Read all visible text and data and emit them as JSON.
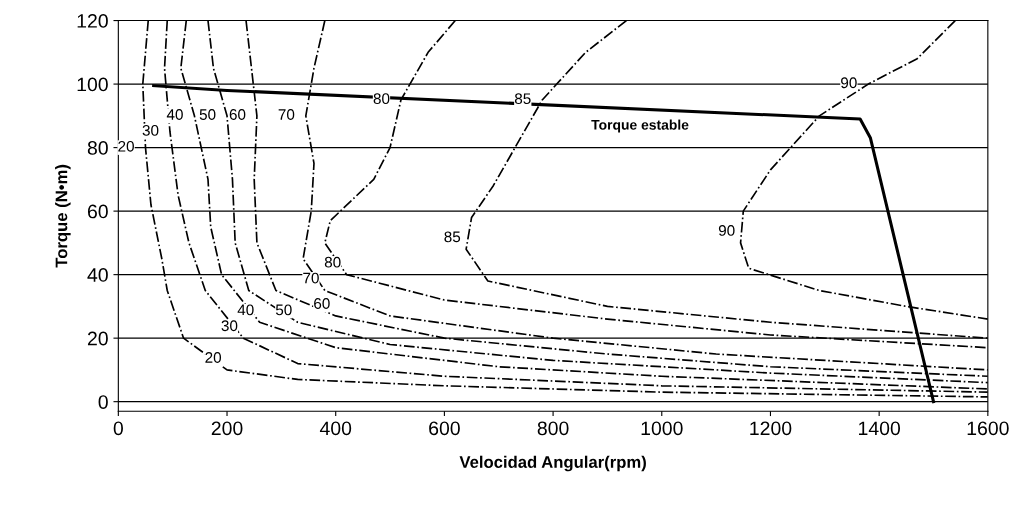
{
  "chart_data": {
    "type": "line",
    "xlabel": "Velocidad Angular(rpm)",
    "ylabel": "Torque (N•m)",
    "xlim": [
      0,
      1600
    ],
    "ylim": [
      -3,
      120
    ],
    "xticks": [
      0,
      200,
      400,
      600,
      800,
      1000,
      1200,
      1400,
      1600
    ],
    "yticks": [
      0,
      20,
      40,
      60,
      80,
      100,
      120
    ],
    "grid": "y",
    "marker": "none",
    "series": [
      {
        "name": "20",
        "color": "#000000",
        "line_style": "dashdot",
        "x": [
          55,
          45,
          50,
          60,
          80,
          90,
          120,
          200,
          330,
          600,
          1000,
          1600
        ],
        "values": [
          120,
          100,
          80,
          62,
          45,
          35,
          20,
          10,
          7,
          5,
          3,
          1.5
        ]
      },
      {
        "name": "30",
        "color": "#000000",
        "line_style": "dashdot",
        "x": [
          90,
          85,
          95,
          110,
          130,
          160,
          230,
          330,
          600,
          1000,
          1600
        ],
        "values": [
          120,
          105,
          85,
          65,
          50,
          35,
          20,
          12,
          8,
          5,
          3
        ]
      },
      {
        "name": "40",
        "color": "#000000",
        "line_style": "dashdot",
        "x": [
          125,
          115,
          140,
          165,
          170,
          190,
          260,
          400,
          700,
          1000,
          1600
        ],
        "values": [
          120,
          105,
          90,
          70,
          55,
          40,
          25,
          17,
          11,
          8,
          4
        ]
      },
      {
        "name": "50",
        "color": "#000000",
        "line_style": "dashdot",
        "x": [
          165,
          175,
          200,
          210,
          215,
          240,
          330,
          500,
          800,
          1200,
          1600
        ],
        "values": [
          120,
          105,
          90,
          70,
          50,
          35,
          25,
          18,
          13,
          9,
          6
        ]
      },
      {
        "name": "60",
        "color": "#000000",
        "line_style": "dashdot",
        "x": [
          235,
          245,
          255,
          250,
          255,
          290,
          400,
          600,
          900,
          1200,
          1600
        ],
        "values": [
          120,
          105,
          90,
          70,
          50,
          35,
          27,
          20,
          15,
          11,
          8
        ]
      },
      {
        "name": "70",
        "color": "#000000",
        "line_style": "dashdot",
        "x": [
          380,
          360,
          345,
          360,
          355,
          340,
          380,
          500,
          800,
          1100,
          1600
        ],
        "values": [
          120,
          105,
          90,
          75,
          60,
          45,
          35,
          27,
          20,
          15,
          10
        ]
      },
      {
        "name": "80",
        "color": "#000000",
        "line_style": "dashdot",
        "x": [
          620,
          570,
          520,
          500,
          470,
          390,
          380,
          420,
          600,
          900,
          1200,
          1600
        ],
        "values": [
          120,
          110,
          95,
          80,
          70,
          57,
          50,
          40,
          32,
          26,
          21,
          17
        ]
      },
      {
        "name": "85",
        "color": "#000000",
        "line_style": "dashdot",
        "x": [
          935,
          860,
          780,
          730,
          690,
          650,
          640,
          680,
          900,
          1200,
          1600
        ],
        "values": [
          120,
          110,
          95,
          80,
          68,
          58,
          48,
          38,
          30,
          25,
          20
        ]
      },
      {
        "name": "90",
        "color": "#000000",
        "line_style": "dashdot",
        "x": [
          1540,
          1470,
          1380,
          1290,
          1200,
          1150,
          1145,
          1160,
          1290,
          1450,
          1600
        ],
        "values": [
          120,
          108,
          100,
          90,
          73,
          60,
          50,
          42,
          35,
          30,
          26
        ]
      },
      {
        "color": "#000000",
        "line_style": "solid",
        "x": [
          65,
          200,
          1365,
          1384,
          1500
        ],
        "values": [
          99.5,
          98,
          89,
          83,
          0
        ]
      }
    ],
    "annotations": [
      "Torque estable"
    ]
  }
}
